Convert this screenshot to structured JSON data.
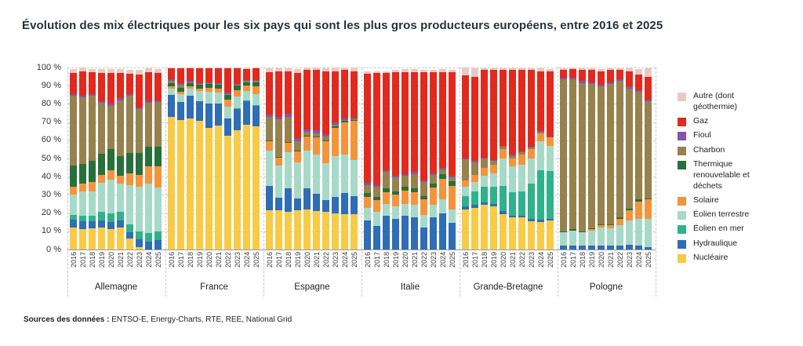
{
  "header": {
    "title": "Évolution des mix électriques pour les six pays qui sont les plus gros producteurs européens, entre 2016 et 2025"
  },
  "footer": {
    "source_label": "Sources des données :",
    "source_text": " ENTSO-E, Energy-Charts, RTE, REE, National Grid"
  },
  "chart_data": {
    "type": "bar",
    "stacked": true,
    "unit": "%",
    "title": "Évolution des mix électriques pour les six pays qui sont les plus gros producteurs européens, entre 2016 et 2025",
    "ylim": [
      0,
      100
    ],
    "grid": true,
    "legend_position": "right",
    "ytick_labels": [
      "0 %",
      "10 %",
      "20 %",
      "30 %",
      "40 %",
      "50 %",
      "60 %",
      "70 %",
      "80 %",
      "90 %",
      "100 %"
    ],
    "years": [
      "2016",
      "2017",
      "2018",
      "2019",
      "2020",
      "2021",
      "2022",
      "2023",
      "2024",
      "2025"
    ],
    "categories_bottom_to_top": [
      "nucleaire",
      "hydraulique",
      "eolien_mer",
      "eolien_terrestre",
      "solaire",
      "thermique",
      "charbon",
      "fioul",
      "gaz",
      "autre"
    ],
    "category_labels": {
      "autre": "Autre (dont géothermie)",
      "gaz": "Gaz",
      "fioul": "Fioul",
      "charbon": "Charbon",
      "thermique": "Thermique renouvelable et déchets",
      "solaire": "Solaire",
      "eolien_terrestre": "Éolien terrestre",
      "eolien_mer": "Éolien en mer",
      "hydraulique": "Hydraulique",
      "nucleaire": "Nucléaire"
    },
    "colors": {
      "autre": "#E8CAC4",
      "gaz": "#E2291D",
      "fioul": "#8355AC",
      "charbon": "#97814C",
      "thermique": "#27703A",
      "solaire": "#F3943C",
      "eolien_terrestre": "#A7D9C8",
      "eolien_mer": "#2FB28C",
      "hydraulique": "#2F6DB5",
      "nucleaire": "#F7CB46"
    },
    "countries": [
      {
        "name": "Allemagne",
        "series": {
          "nucleaire": [
            12,
            11,
            11.5,
            12,
            11,
            12,
            6,
            1.5,
            0,
            0
          ],
          "hydraulique": [
            4.5,
            4.5,
            4,
            4,
            4,
            4,
            3.5,
            4,
            4.5,
            5
          ],
          "eolien_mer": [
            2.5,
            3,
            3,
            4.5,
            5,
            4.5,
            4.5,
            4.5,
            4.5,
            5
          ],
          "eolien_terrestre": [
            11,
            13.5,
            13.5,
            16,
            18.5,
            15.5,
            21.5,
            24.5,
            27,
            24
          ],
          "solaire": [
            4.5,
            4,
            5,
            4.5,
            5,
            4.5,
            6.5,
            6.5,
            9.5,
            11.5
          ],
          "thermique": [
            11.5,
            11,
            11.5,
            11.5,
            11.5,
            11,
            11,
            12,
            11,
            11
          ],
          "charbon": [
            38.5,
            36.5,
            36,
            28,
            24,
            30.5,
            31.5,
            24,
            24,
            24.5
          ],
          "fioul": [
            1,
            1,
            1,
            1,
            1,
            1,
            1,
            1,
            1,
            1
          ],
          "gaz": [
            11.5,
            13.5,
            12,
            15.5,
            17,
            14,
            11,
            18,
            16,
            15
          ],
          "autre": [
            2,
            2,
            1.5,
            2,
            2,
            2,
            2,
            2.5,
            2,
            2
          ]
        }
      },
      {
        "name": "France",
        "series": {
          "nucleaire": [
            73,
            71,
            72,
            70.5,
            67,
            68,
            62.5,
            65.5,
            68.5,
            67.5
          ],
          "hydraulique": [
            12,
            10,
            12.5,
            11,
            13,
            12,
            9.5,
            11.5,
            13,
            11.5
          ],
          "eolien_mer": [
            0,
            0,
            0,
            0,
            0,
            0,
            0,
            0.5,
            0.5,
            0.5
          ],
          "eolien_terrestre": [
            3.5,
            4.5,
            4,
            5.5,
            6.5,
            6,
            6.5,
            6.5,
            5,
            6
          ],
          "solaire": [
            1,
            1,
            1,
            1.5,
            2.5,
            2.5,
            4,
            3.5,
            3,
            4
          ],
          "thermique": [
            2,
            2.5,
            2,
            2,
            2,
            2,
            2.5,
            2.5,
            2,
            2.5
          ],
          "charbon": [
            1,
            1.5,
            0.5,
            0.5,
            0.5,
            0.5,
            0.5,
            0.5,
            0.5,
            0.5
          ],
          "fioul": [
            1,
            1,
            0.5,
            0.5,
            0.5,
            0.5,
            0.5,
            0.5,
            0.5,
            0.5
          ],
          "gaz": [
            6,
            8,
            7,
            8,
            7.5,
            8,
            13.5,
            8.5,
            6,
            6.5
          ],
          "autre": [
            0.5,
            0.5,
            0.5,
            0.5,
            0.5,
            0.5,
            0.5,
            0.5,
            0.5,
            0.5
          ]
        }
      },
      {
        "name": "Espagne",
        "series": {
          "nucleaire": [
            21.5,
            21.5,
            20.5,
            21.5,
            22,
            21,
            20.5,
            20,
            19.5,
            19.5
          ],
          "hydraulique": [
            13.5,
            7,
            13,
            6.5,
            11.5,
            9.5,
            6.5,
            9,
            11.5,
            10
          ],
          "eolien_mer": [
            0,
            0,
            0,
            0,
            0,
            0,
            0,
            0,
            0,
            0
          ],
          "eolien_terrestre": [
            19.5,
            17.5,
            20,
            20,
            21,
            21.5,
            20.5,
            22.5,
            21,
            19.5
          ],
          "solaire": [
            5,
            4.5,
            5,
            6,
            7.5,
            9.5,
            12,
            15.5,
            18,
            21.5
          ],
          "thermique": [
            0.5,
            0.5,
            0.5,
            0.5,
            0.5,
            0.5,
            0.5,
            0.5,
            0.5,
            0.5
          ],
          "charbon": [
            13,
            20.5,
            14,
            5,
            2,
            2,
            2,
            1,
            0.5,
            0.5
          ],
          "fioul": [
            1,
            1.5,
            1.5,
            1.5,
            1.5,
            1.5,
            1.5,
            1.5,
            1,
            1
          ],
          "gaz": [
            23.5,
            25,
            23.5,
            36,
            32.5,
            33,
            34.5,
            28,
            26.5,
            25.5
          ],
          "autre": [
            2,
            1.5,
            1.5,
            2,
            1.5,
            1.5,
            1.5,
            2,
            1.5,
            2
          ]
        }
      },
      {
        "name": "Italie",
        "series": {
          "nucleaire": [
            0,
            0,
            0,
            0,
            0,
            0,
            0,
            0,
            0,
            0
          ],
          "hydraulique": [
            16,
            13,
            18.5,
            17,
            18.5,
            17.5,
            12,
            17.5,
            20,
            14.5
          ],
          "eolien_mer": [
            0,
            0,
            0,
            0,
            0,
            0,
            0,
            0,
            0,
            0
          ],
          "eolien_terrestre": [
            7,
            7.5,
            6.5,
            6.5,
            6.5,
            7,
            7,
            7,
            7.5,
            7.5
          ],
          "solaire": [
            6,
            6.5,
            6.5,
            6.5,
            7.5,
            7,
            8.5,
            9.5,
            11.5,
            13
          ],
          "thermique": [
            2,
            2,
            2,
            2,
            2,
            2,
            2,
            2,
            2.5,
            2.5
          ],
          "charbon": [
            4.5,
            5.5,
            9,
            7.5,
            6,
            8,
            7.5,
            5,
            2.5,
            2
          ],
          "fioul": [
            1,
            1,
            1,
            1,
            1,
            1,
            1,
            1,
            1,
            1
          ],
          "gaz": [
            60,
            61.5,
            53.5,
            57,
            56,
            55,
            59.5,
            55.5,
            52.5,
            57
          ],
          "autre": [
            1.5,
            1,
            1,
            1,
            1.5,
            1.5,
            1,
            1,
            1.5,
            1
          ]
        }
      },
      {
        "name": "Grande-Bretagne",
        "series": {
          "nucleaire": [
            22,
            23,
            24.5,
            23.5,
            19.5,
            17.5,
            17.5,
            15.5,
            15,
            16
          ],
          "hydraulique": [
            1.5,
            1.5,
            1.5,
            1.5,
            1.5,
            1,
            1,
            1.5,
            1.5,
            1
          ],
          "eolien_mer": [
            6,
            7.5,
            8.5,
            9.5,
            14,
            13,
            13.5,
            19,
            27,
            26
          ],
          "eolien_terrestre": [
            5,
            5,
            6,
            7.5,
            15,
            14,
            14.5,
            14,
            16,
            14
          ],
          "solaire": [
            3.5,
            4,
            4.5,
            4.5,
            5,
            4.5,
            5.5,
            5,
            4.5,
            4.5
          ],
          "thermique": [
            0,
            0,
            0,
            0,
            0,
            0,
            0,
            0,
            0,
            0
          ],
          "charbon": [
            11.5,
            7,
            5,
            2,
            1.5,
            1.5,
            1.5,
            1,
            0.5,
            0
          ],
          "fioul": [
            0.5,
            0.5,
            0.5,
            0.5,
            0.5,
            0.5,
            0.5,
            0.5,
            0.5,
            0.5
          ],
          "gaz": [
            45.5,
            46.5,
            48,
            49.5,
            41.5,
            46.5,
            44.5,
            42,
            33,
            36
          ],
          "autre": [
            4.5,
            4.5,
            1,
            1,
            1,
            1,
            1,
            1,
            1.5,
            1
          ]
        }
      },
      {
        "name": "Pologne",
        "series": {
          "nucleaire": [
            0,
            0,
            0,
            0,
            0,
            0,
            0,
            0,
            0,
            0
          ],
          "hydraulique": [
            2,
            2,
            2,
            2,
            2,
            2,
            2,
            2.5,
            2,
            1.5
          ],
          "eolien_mer": [
            0,
            0,
            0,
            0,
            0,
            0,
            0,
            0,
            0,
            0
          ],
          "eolien_terrestre": [
            7.5,
            8.5,
            7.5,
            8.5,
            10,
            9.5,
            11.5,
            13.5,
            15,
            15.5
          ],
          "solaire": [
            0,
            0,
            0,
            0.5,
            1.5,
            2,
            3.5,
            5.5,
            9.5,
            10.5
          ],
          "thermique": [
            0.5,
            0.5,
            0.5,
            0.5,
            0.5,
            0.5,
            0.5,
            1,
            1,
            0.5
          ],
          "charbon": [
            83.5,
            82.5,
            81.5,
            79.5,
            75.5,
            77,
            75,
            66,
            59,
            53.5
          ],
          "fioul": [
            1,
            1,
            1,
            1,
            1,
            1,
            1,
            1,
            1,
            1
          ],
          "gaz": [
            4,
            4.5,
            6,
            6.5,
            7.5,
            6.5,
            5,
            8.5,
            8.5,
            12.5
          ],
          "autre": [
            1,
            1,
            1,
            1,
            1,
            1,
            1,
            1.5,
            3,
            4.5
          ]
        }
      }
    ]
  }
}
